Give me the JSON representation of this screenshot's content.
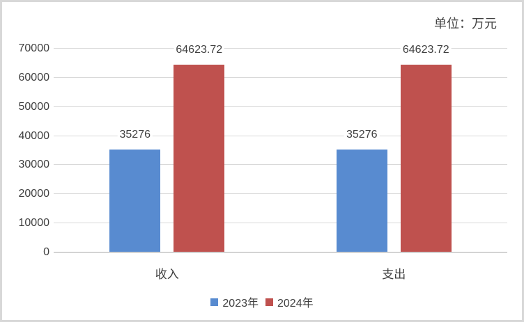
{
  "header": {
    "unit_label": "单位：万元"
  },
  "colors": {
    "series_2023": "#588BD0",
    "series_2024": "#BF514E",
    "gridline": "#D9D9D9",
    "text": "#404040",
    "frame_border": "#D8D8D8",
    "background": "#FFFFFF"
  },
  "chart_data": {
    "type": "bar",
    "title": "",
    "xlabel": "",
    "ylabel": "",
    "categories": [
      "收入",
      "支出"
    ],
    "series": [
      {
        "name": "2023年",
        "color": "#588BD0",
        "values": [
          35276,
          35276
        ],
        "value_labels": [
          "35276",
          "35276"
        ]
      },
      {
        "name": "2024年",
        "color": "#BF514E",
        "values": [
          64623.72,
          64623.72
        ],
        "value_labels": [
          "64623.72",
          "64623.72"
        ]
      }
    ],
    "ylim": [
      0,
      70000
    ],
    "ytick_step": 10000,
    "ytick_labels": [
      "0",
      "10000",
      "20000",
      "30000",
      "40000",
      "50000",
      "60000",
      "70000"
    ],
    "grid": true,
    "legend_position": "bottom"
  }
}
